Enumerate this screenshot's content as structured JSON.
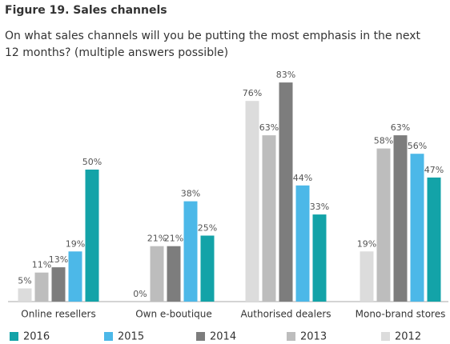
{
  "chart_data": {
    "type": "bar",
    "title": "Figure 19. Sales channels",
    "subtitle": [
      "On what sales channels will you be putting the most emphasis in the next",
      "12 months? (multiple answers possible)"
    ],
    "categories": [
      "Online resellers",
      "Own e-boutique",
      "Authorised dealers",
      "Mono-brand stores"
    ],
    "series": [
      {
        "name": "2016",
        "color": "#13a3a8",
        "values": [
          50,
          25,
          33,
          47
        ],
        "value_labels": [
          "50%",
          "25%",
          "33%",
          "47%"
        ]
      },
      {
        "name": "2015",
        "color": "#4cb8e8",
        "values": [
          19,
          38,
          44,
          56
        ],
        "value_labels": [
          "19%",
          "38%",
          "44%",
          "56%"
        ]
      },
      {
        "name": "2014",
        "color": "#7d7d7d",
        "values": [
          13,
          21,
          83,
          63
        ],
        "value_labels": [
          "13%",
          "21%",
          "83%",
          "63%"
        ]
      },
      {
        "name": "2013",
        "color": "#bdbdbd",
        "values": [
          11,
          21,
          63,
          58
        ],
        "value_labels": [
          "11%",
          "21%",
          "63%",
          "58%"
        ]
      },
      {
        "name": "2012",
        "color": "#dcdcdc",
        "values": [
          5,
          0,
          76,
          19
        ],
        "value_labels": [
          "5%",
          "0%",
          "76%",
          "19%"
        ]
      }
    ]
  }
}
